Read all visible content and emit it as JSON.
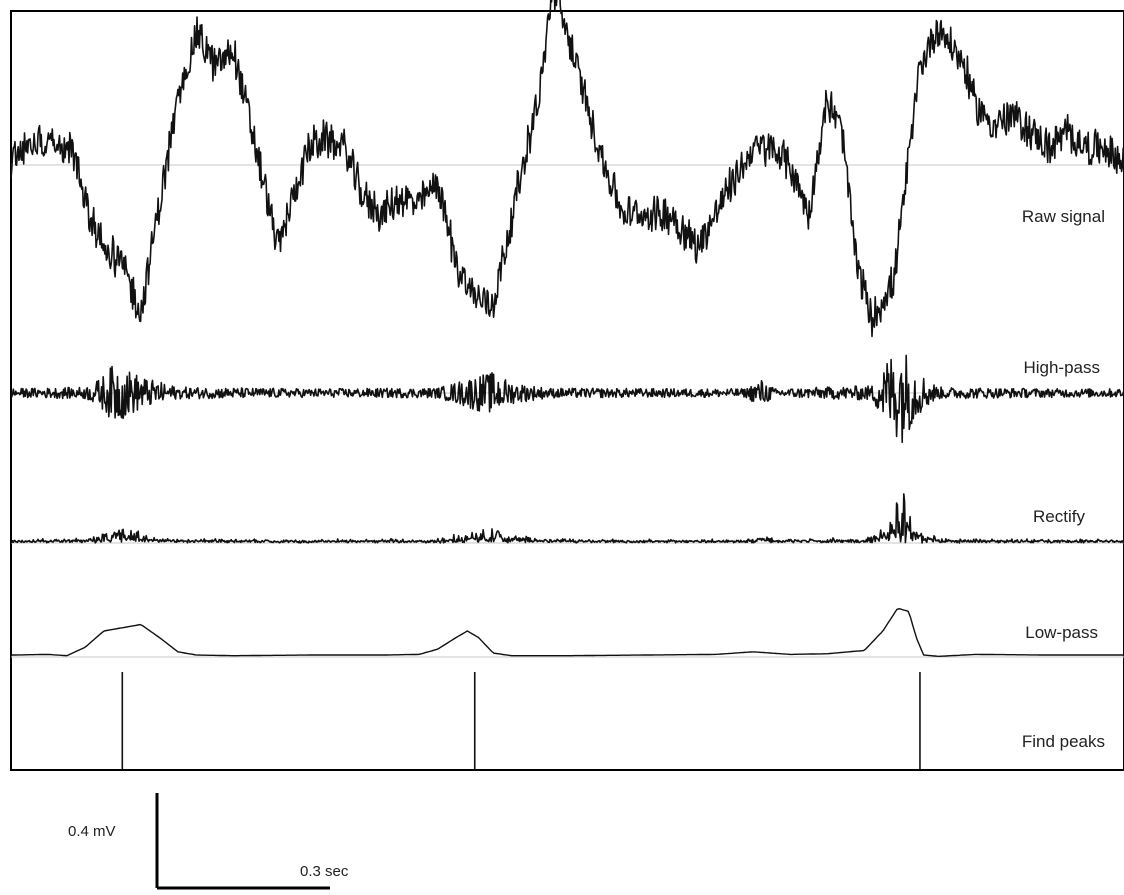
{
  "chart_data": {
    "type": "line",
    "series": [
      {
        "name": "Raw signal",
        "kind": "noisy",
        "baseline": 0,
        "noise": 0.05,
        "x": [
          0,
          0.02,
          0.05,
          0.1,
          0.17,
          0.2,
          0.25,
          0.3,
          0.35,
          0.4,
          0.45,
          0.5,
          0.55,
          0.6,
          0.63,
          0.66,
          0.72,
          0.76,
          0.8,
          0.85,
          0.9,
          0.95,
          1.0,
          1.05,
          1.1,
          1.15,
          1.2,
          1.25,
          1.3,
          1.38,
          1.43,
          1.46,
          1.5,
          1.56,
          1.6,
          1.65,
          1.7,
          1.78,
          1.85,
          1.92,
          2.0,
          2.05,
          2.1,
          2.15,
          2.2,
          2.24,
          2.28,
          2.32,
          2.38,
          2.45,
          2.5,
          2.57,
          2.6,
          2.65,
          2.7,
          2.75,
          2.8,
          2.85,
          2.9,
          2.95,
          3.0
        ],
        "values": [
          0,
          0.05,
          0.06,
          0.08,
          0.04,
          -0.12,
          -0.25,
          -0.3,
          -0.45,
          -0.12,
          0.2,
          0.4,
          0.3,
          0.35,
          0.2,
          0.05,
          -0.25,
          -0.1,
          0.05,
          0.08,
          0.05,
          -0.1,
          -0.15,
          -0.1,
          -0.12,
          -0.05,
          -0.3,
          -0.4,
          -0.42,
          0.0,
          0.25,
          0.55,
          0.4,
          0.15,
          0.0,
          -0.15,
          -0.15,
          -0.15,
          -0.25,
          -0.1,
          0.05,
          0.05,
          0.0,
          -0.15,
          0.2,
          0.1,
          -0.3,
          -0.47,
          -0.35,
          0.3,
          0.42,
          0.3,
          0.18,
          0.12,
          0.15,
          0.1,
          0.05,
          0.1,
          0.05,
          0.05,
          0.0
        ]
      },
      {
        "name": "High-pass",
        "kind": "noisy",
        "baseline": 0,
        "noise": 0.006,
        "x": [
          0,
          0.2,
          0.24,
          0.28,
          0.33,
          0.37,
          0.45,
          0.8,
          1.15,
          1.2,
          1.25,
          1.3,
          1.35,
          1.45,
          1.8,
          1.98,
          2.02,
          2.06,
          2.2,
          2.32,
          2.37,
          2.4,
          2.45,
          2.5,
          2.8,
          3.0
        ],
        "values": [
          0.01,
          0.015,
          0.04,
          0.09,
          0.06,
          0.04,
          0.015,
          0.01,
          0.012,
          0.03,
          0.05,
          0.06,
          0.03,
          0.012,
          0.01,
          0.01,
          0.04,
          0.01,
          0.015,
          0.02,
          0.12,
          0.15,
          0.06,
          0.015,
          0.01,
          0.01
        ]
      },
      {
        "name": "Rectify",
        "kind": "noisy",
        "baseline": 0,
        "noise": 0.006,
        "x": [
          0,
          0.2,
          0.24,
          0.28,
          0.33,
          0.37,
          0.45,
          0.8,
          1.15,
          1.2,
          1.25,
          1.3,
          1.35,
          1.45,
          1.8,
          1.98,
          2.02,
          2.06,
          2.2,
          2.32,
          2.37,
          2.4,
          2.45,
          2.5,
          2.8,
          3.0
        ],
        "values": [
          0.008,
          0.01,
          0.035,
          0.05,
          0.04,
          0.02,
          0.008,
          0.006,
          0.008,
          0.025,
          0.035,
          0.04,
          0.02,
          0.008,
          0.006,
          0.006,
          0.03,
          0.006,
          0.01,
          0.015,
          0.06,
          0.17,
          0.05,
          0.008,
          0.006,
          0.006
        ]
      },
      {
        "name": "Low-pass",
        "kind": "smooth",
        "baseline": 0,
        "x": [
          0,
          0.1,
          0.15,
          0.2,
          0.25,
          0.3,
          0.35,
          0.4,
          0.45,
          0.5,
          0.6,
          0.8,
          1.0,
          1.1,
          1.15,
          1.2,
          1.23,
          1.26,
          1.3,
          1.35,
          1.5,
          1.7,
          1.9,
          2.0,
          2.1,
          2.2,
          2.3,
          2.35,
          2.39,
          2.42,
          2.44,
          2.46,
          2.5,
          2.6,
          2.8,
          3.0
        ],
        "values": [
          0.003,
          0.004,
          0.002,
          0.015,
          0.04,
          0.045,
          0.05,
          0.03,
          0.008,
          0.003,
          0.002,
          0.003,
          0.003,
          0.004,
          0.012,
          0.03,
          0.04,
          0.03,
          0.006,
          0.002,
          0.002,
          0.003,
          0.004,
          0.008,
          0.004,
          0.005,
          0.01,
          0.04,
          0.075,
          0.07,
          0.03,
          0.003,
          0.001,
          0.004,
          0.003,
          0.003
        ]
      },
      {
        "name": "Find peaks",
        "kind": "peaks",
        "x": [
          0.3,
          1.25,
          2.45
        ]
      }
    ],
    "x_range": [
      0,
      3.0
    ],
    "scale_bar": {
      "voltage": "0.4 mV",
      "time": "0.3 sec"
    },
    "grid": false,
    "legend": "none"
  },
  "colors": {
    "trace": "#111111",
    "baseline": "#c8c8c8",
    "axes": "#000000",
    "label": "#222222"
  }
}
